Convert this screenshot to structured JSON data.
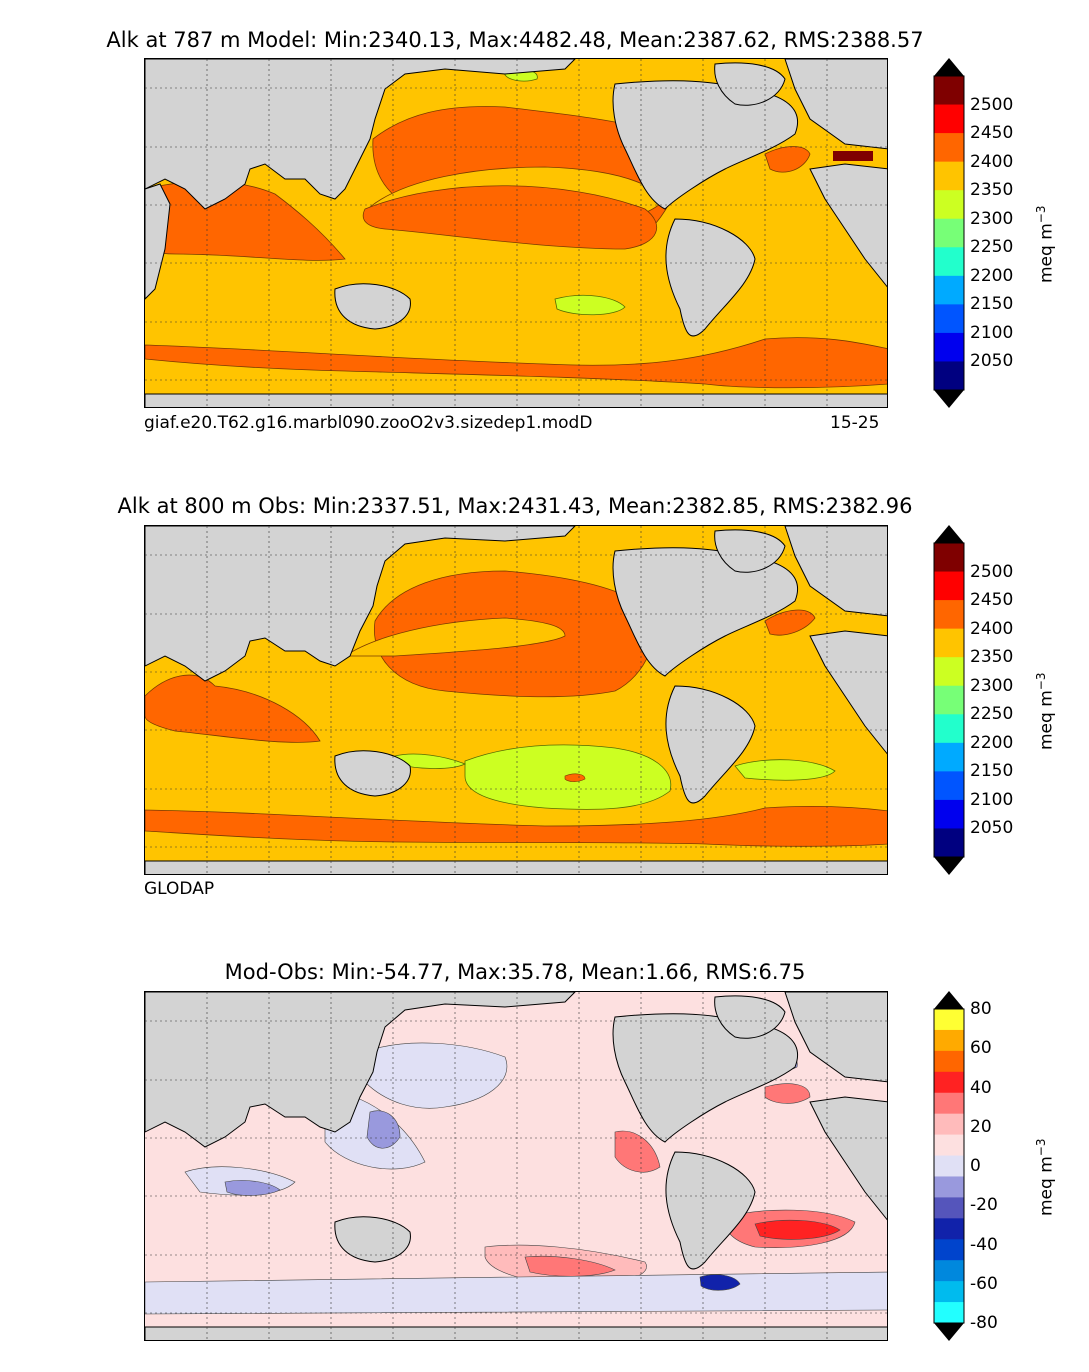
{
  "panels": [
    {
      "id": "model",
      "title": "Alk at 787 m Model: Min:2340.13, Max:4482.48, Mean:2387.62, RMS:2388.57",
      "caption_left": "giaf.e20.T62.g16.marbl090.zooO2v3.sizedep1.modD",
      "caption_right": "15-25",
      "colorbar": {
        "unit": "meq m",
        "unit_sup": "−3",
        "ticks": [
          "2500",
          "2450",
          "2400",
          "2350",
          "2300",
          "2250",
          "2200",
          "2150",
          "2100",
          "2050"
        ],
        "colors": [
          "#7f0000",
          "#ff0000",
          "#ff6600",
          "#ffc400",
          "#ccff22",
          "#77ff77",
          "#22ffcc",
          "#00aaff",
          "#0055ff",
          "#0000ee",
          "#000080"
        ],
        "arrow_top": "#000000",
        "arrow_bottom": "#000000"
      }
    },
    {
      "id": "obs",
      "title": "Alk at 800 m Obs: Min:2337.51, Max:2431.43, Mean:2382.85, RMS:2382.96",
      "caption_left": "GLODAP",
      "caption_right": "",
      "colorbar": {
        "unit": "meq m",
        "unit_sup": "−3",
        "ticks": [
          "2500",
          "2450",
          "2400",
          "2350",
          "2300",
          "2250",
          "2200",
          "2150",
          "2100",
          "2050"
        ],
        "colors": [
          "#7f0000",
          "#ff0000",
          "#ff6600",
          "#ffc400",
          "#ccff22",
          "#77ff77",
          "#22ffcc",
          "#00aaff",
          "#0055ff",
          "#0000ee",
          "#000080"
        ],
        "arrow_top": "#000000",
        "arrow_bottom": "#000000"
      }
    },
    {
      "id": "diff",
      "title": "Mod-Obs: Min:-54.77, Max:35.78, Mean:1.66, RMS:6.75",
      "caption_left": "",
      "caption_right": "",
      "colorbar": {
        "unit": "meq m",
        "unit_sup": "−3",
        "ticks": [
          "80",
          "60",
          "40",
          "20",
          "0",
          "-20",
          "-40",
          "-60",
          "-80"
        ],
        "colors": [
          "#ffff33",
          "#ffaa00",
          "#ff6600",
          "#ff2222",
          "#ff7777",
          "#ffbbbb",
          "#fde0e0",
          "#e0e0f5",
          "#9999dd",
          "#5555bb",
          "#1122aa",
          "#0044cc",
          "#0088dd",
          "#00bbee",
          "#22ffff"
        ],
        "arrow_top": "#000000",
        "arrow_bottom": "#000000"
      }
    }
  ]
}
